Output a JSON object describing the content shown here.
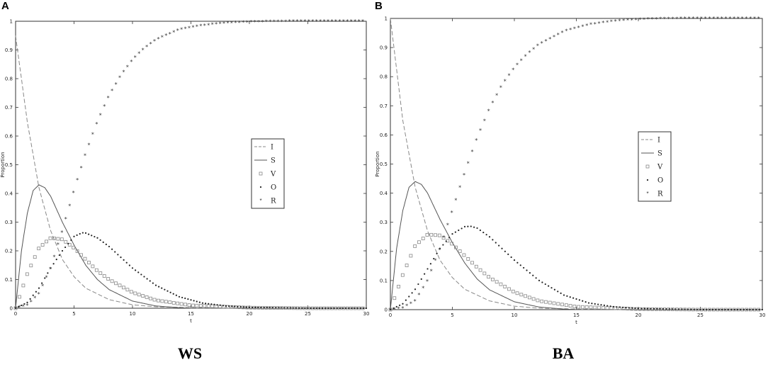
{
  "figure": {
    "panels": [
      {
        "letter": "A",
        "caption": "WS"
      },
      {
        "letter": "B",
        "caption": "BA"
      }
    ]
  },
  "chart_data": [
    {
      "type": "line",
      "panel": "A",
      "xlabel": "t",
      "ylabel": "Proportion",
      "xlim": [
        0,
        30
      ],
      "ylim": [
        0,
        1
      ],
      "xticks": [
        "0",
        "5",
        "10",
        "15",
        "20",
        "25",
        "30"
      ],
      "yticks": [
        "0",
        "0.1",
        "0.2",
        "0.3",
        "0.4",
        "0.5",
        "0.6",
        "0.7",
        "0.8",
        "0.9",
        "1"
      ],
      "legend": "center-right",
      "series": [
        {
          "name": "I",
          "style": "dashed",
          "x": [
            0,
            1,
            2,
            3,
            4,
            5,
            6,
            8,
            10,
            12,
            15,
            20,
            30
          ],
          "y": [
            0.95,
            0.65,
            0.42,
            0.27,
            0.17,
            0.11,
            0.07,
            0.03,
            0.012,
            0.005,
            0.002,
            0.0,
            0.0
          ]
        },
        {
          "name": "S",
          "style": "solid",
          "x": [
            0,
            0.5,
            1,
            1.5,
            2,
            2.5,
            3,
            4,
            5,
            6,
            7,
            8,
            10,
            12,
            14,
            15,
            20,
            30
          ],
          "y": [
            0.0,
            0.2,
            0.33,
            0.41,
            0.43,
            0.42,
            0.39,
            0.3,
            0.22,
            0.15,
            0.1,
            0.065,
            0.025,
            0.008,
            0.002,
            0.0,
            0.0,
            0.0
          ]
        },
        {
          "name": "V",
          "style": "square",
          "x": [
            0,
            1,
            2,
            3,
            4,
            5,
            6,
            7,
            8,
            10,
            12,
            15,
            20,
            25,
            30
          ],
          "y": [
            0.0,
            0.12,
            0.21,
            0.245,
            0.24,
            0.21,
            0.17,
            0.13,
            0.1,
            0.055,
            0.028,
            0.01,
            0.002,
            0.0,
            0.0
          ]
        },
        {
          "name": "O",
          "style": "dot",
          "x": [
            0,
            1,
            2,
            3,
            4,
            5,
            5.7,
            6,
            7,
            8,
            10,
            12,
            14,
            16,
            18,
            20,
            25,
            30
          ],
          "y": [
            0.0,
            0.02,
            0.07,
            0.14,
            0.2,
            0.25,
            0.263,
            0.262,
            0.245,
            0.215,
            0.14,
            0.08,
            0.04,
            0.018,
            0.008,
            0.003,
            0.0,
            0.0
          ]
        },
        {
          "name": "R",
          "style": "star",
          "x": [
            0,
            1,
            2,
            3,
            4,
            5,
            6,
            7,
            8,
            9,
            10,
            11,
            12,
            14,
            16,
            18,
            20,
            22,
            25,
            30
          ],
          "y": [
            0.0,
            0.01,
            0.05,
            0.14,
            0.27,
            0.41,
            0.54,
            0.65,
            0.74,
            0.81,
            0.865,
            0.905,
            0.935,
            0.97,
            0.985,
            0.993,
            0.997,
            0.999,
            1.0,
            1.0
          ]
        }
      ]
    },
    {
      "type": "line",
      "panel": "B",
      "xlabel": "t",
      "ylabel": "Proportion",
      "xlim": [
        0,
        30
      ],
      "ylim": [
        0,
        1
      ],
      "xticks": [
        "0",
        "5",
        "10",
        "15",
        "20",
        "25",
        "30"
      ],
      "yticks": [
        "0",
        "0.1",
        "0.2",
        "0.3",
        "0.4",
        "0.5",
        "0.6",
        "0.7",
        "0.8",
        "0.9",
        "1"
      ],
      "legend": "center-right",
      "series": [
        {
          "name": "I",
          "style": "dashed",
          "x": [
            0,
            1,
            2,
            3,
            4,
            5,
            6,
            8,
            10,
            12,
            15,
            20,
            30
          ],
          "y": [
            1.0,
            0.65,
            0.42,
            0.27,
            0.17,
            0.11,
            0.07,
            0.03,
            0.012,
            0.005,
            0.002,
            0.0,
            0.0
          ]
        },
        {
          "name": "S",
          "style": "solid",
          "x": [
            0,
            0.5,
            1,
            1.5,
            2,
            2.5,
            3,
            4,
            5,
            6,
            7,
            8,
            10,
            12,
            14,
            15,
            20,
            30
          ],
          "y": [
            0.0,
            0.21,
            0.34,
            0.42,
            0.44,
            0.43,
            0.4,
            0.31,
            0.23,
            0.16,
            0.105,
            0.068,
            0.027,
            0.009,
            0.002,
            0.0,
            0.0,
            0.0
          ]
        },
        {
          "name": "V",
          "style": "square",
          "x": [
            0,
            1,
            2,
            3,
            4,
            5,
            6,
            7,
            8,
            10,
            12,
            15,
            20,
            25,
            30
          ],
          "y": [
            0.0,
            0.12,
            0.22,
            0.258,
            0.255,
            0.225,
            0.185,
            0.145,
            0.11,
            0.06,
            0.03,
            0.01,
            0.002,
            0.0,
            0.0
          ]
        },
        {
          "name": "O",
          "style": "dot",
          "x": [
            0,
            1,
            2,
            3,
            4,
            5,
            6,
            6.5,
            7,
            8,
            10,
            12,
            14,
            16,
            18,
            20,
            25,
            30
          ],
          "y": [
            0.0,
            0.02,
            0.07,
            0.14,
            0.21,
            0.26,
            0.285,
            0.286,
            0.28,
            0.25,
            0.17,
            0.1,
            0.05,
            0.023,
            0.01,
            0.004,
            0.0,
            0.0
          ]
        },
        {
          "name": "R",
          "style": "star",
          "x": [
            0,
            1,
            2,
            3,
            4,
            5,
            6,
            7,
            8,
            9,
            10,
            11,
            12,
            14,
            16,
            18,
            20,
            22,
            25,
            30
          ],
          "y": [
            0.0,
            0.005,
            0.03,
            0.1,
            0.21,
            0.34,
            0.47,
            0.59,
            0.69,
            0.77,
            0.83,
            0.875,
            0.91,
            0.955,
            0.978,
            0.99,
            0.996,
            0.999,
            1.0,
            1.0
          ]
        }
      ]
    }
  ]
}
